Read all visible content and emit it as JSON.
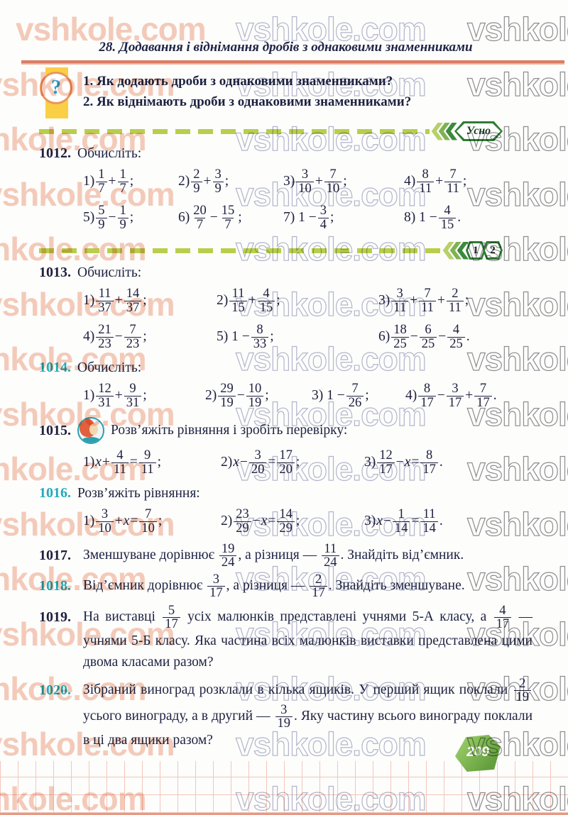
{
  "watermark": {
    "text": "vshkole.com"
  },
  "page": {
    "title": "28. Додавання і віднімання дробів з однаковими знаменниками",
    "page_badge": "209"
  },
  "question_box": {
    "icon": "?",
    "items": [
      "1. Як додають дроби з однаковими знаменниками?",
      "2. Як віднімають дроби з однаковими знаменниками?"
    ]
  },
  "dividers": {
    "usno_label": "Усно",
    "level_badges": [
      "1",
      "2"
    ]
  },
  "colors": {
    "accent_teal": "#23aabb",
    "navy": "#20203f",
    "badge_green": "#2e7d32",
    "dash_green": "#b9ce4a",
    "rule_salmon": "#dc7c63",
    "band_yellow": "#fbcf45",
    "page_hex_green": "#76b049"
  },
  "exercises": [
    {
      "number": "1012.",
      "style": "dark",
      "type": "grid",
      "grid": "g4a",
      "prompt": "Обчисліть:",
      "rows": [
        [
          "1) 1/7 + 1/7;",
          "2) 2/9 + 3/9;",
          "3) 3/10 + 7/10;",
          "4) 8/11 + 7/11;"
        ],
        [
          "5) 5/9 − 1/9;",
          "6) 20/7 − 15/7;",
          "7) 1 − 3/4;",
          "8) 1 − 4/15."
        ]
      ]
    },
    {
      "number": "1013.",
      "style": "dark",
      "type": "grid",
      "grid": "g3a",
      "prompt": "Обчисліть:",
      "rows": [
        [
          "1) 11/37 + 14/37;",
          "2) 11/15 + 4/15;",
          "3) 3/11 + 7/11 + 2/11;"
        ],
        [
          "4) 21/23 − 7/23;",
          "5) 1 − 8/33;",
          "6) 18/25 − 6/25 − 4/25."
        ]
      ]
    },
    {
      "number": "1014.",
      "style": "teal",
      "type": "grid",
      "grid": "g4b",
      "prompt": "Обчисліть:",
      "rows": [
        [
          "1) 12/31 + 9/31;",
          "2) 29/19 − 10/19;",
          "3) 1 − 7/26;",
          "4) 8/17 − 3/17 + 7/17."
        ]
      ]
    },
    {
      "number": "1015.",
      "style": "dark",
      "type": "grid",
      "grid": "g3b",
      "icon": "pupil-avatar",
      "prompt": "Розв’яжіть рівняння і зробіть перевірку:",
      "rows": [
        [
          "1) x + 4/11 = 9/11;",
          "2) x − 3/20 = 17/20;",
          "3) 12/17 − x = 8/17."
        ]
      ]
    },
    {
      "number": "1016.",
      "style": "teal",
      "type": "grid",
      "grid": "g3b",
      "prompt": "Розв’яжіть рівняння:",
      "rows": [
        [
          "1) 3/10 + x = 7/10;",
          "2) 23/29 − x = 14/29;",
          "3) x − 1/14 = 11/14."
        ]
      ]
    },
    {
      "number": "1017.",
      "style": "dark",
      "type": "word",
      "text": "Зменшуване дорівнює 19/24, а різниця — 11/24. Знайдіть від’ємник."
    },
    {
      "number": "1018.",
      "style": "teal",
      "type": "word",
      "text": "Від’ємник дорівнює 3/17, а різниця — 2/17. Знайдіть зменшуване."
    },
    {
      "number": "1019.",
      "style": "dark",
      "type": "word",
      "text": "На виставці 5/17 усіх малюнків представлені учнями 5-А класу, а 4/17 — учнями 5-Б класу. Яка частина всіх малюнків виставки представлена цими двома класами разом?"
    },
    {
      "number": "1020.",
      "style": "teal",
      "type": "word",
      "text": "Зібраний виноград розклали в кілька ящиків. У перший ящик поклали 2/19 усього винограду, а в другий — 3/19. Яку частину всього винограду поклали в ці два ящики разом?"
    }
  ]
}
